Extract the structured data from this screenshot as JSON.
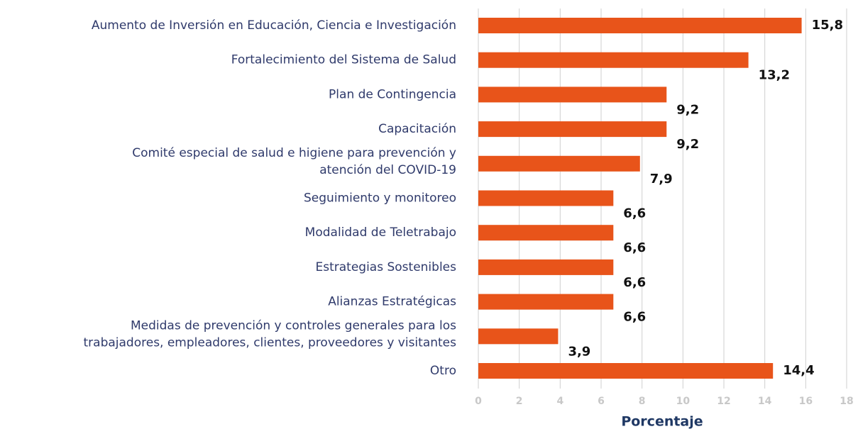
{
  "chart_data": {
    "type": "bar",
    "orientation": "horizontal",
    "categories": [
      "Aumento de Inversión en Educación, Ciencia e Investigación",
      "Fortalecimiento del Sistema de Salud",
      "Plan de Contingencia",
      "Capacitación",
      "Comité especial de salud e higiene para prevención y\natención del COVID-19",
      "Seguimiento y monitoreo",
      "Modalidad de Teletrabajo",
      "Estrategias Sostenibles",
      "Alianzas Estratégicas",
      "Medidas de prevención y controles generales para los\ntrabajadores, empleadores, clientes, proveedores y visitantes",
      "Otro"
    ],
    "values": [
      15.8,
      13.2,
      9.2,
      9.2,
      7.9,
      6.6,
      6.6,
      6.6,
      6.6,
      3.9,
      14.4
    ],
    "value_labels": [
      "15,8",
      "13,2",
      "9,2",
      "9,2",
      "7,9",
      "6,6",
      "6,6",
      "6,6",
      "6,6",
      "3,9",
      "14,4"
    ],
    "color": "#e8541a",
    "xlabel": "Porcentaje",
    "xlim": [
      0,
      18
    ],
    "xticks": [
      0,
      2,
      4,
      6,
      8,
      10,
      12,
      14,
      16,
      18
    ],
    "grid": true
  }
}
